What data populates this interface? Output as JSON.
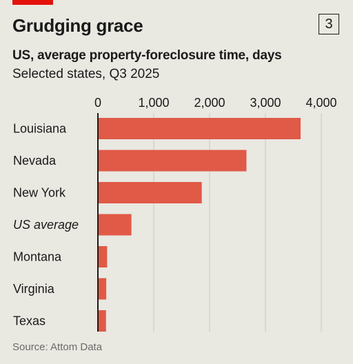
{
  "header": {
    "title": "Grudging grace",
    "badge": "3",
    "subtitle": "US, average property-foreclosure time, days",
    "subsubtitle": "Selected states, Q3 2025"
  },
  "source": "Source: Attom Data",
  "colors": {
    "bar": "#e05a47",
    "accent": "#e3120b",
    "background": "#e9e8e1"
  },
  "chart_data": {
    "type": "bar",
    "orientation": "horizontal",
    "categories": [
      "Louisiana",
      "Nevada",
      "New York",
      "US average",
      "Montana",
      "Virginia",
      "Texas"
    ],
    "highlighted_category": "US average",
    "values": [
      3630,
      2660,
      1860,
      600,
      165,
      150,
      145
    ],
    "xlim": [
      0,
      4000
    ],
    "xticks": [
      0,
      1000,
      2000,
      3000,
      4000
    ],
    "xtick_labels": [
      "0",
      "1,000",
      "2,000",
      "3,000",
      "4,000"
    ],
    "axis_position": "top",
    "grid": true
  }
}
